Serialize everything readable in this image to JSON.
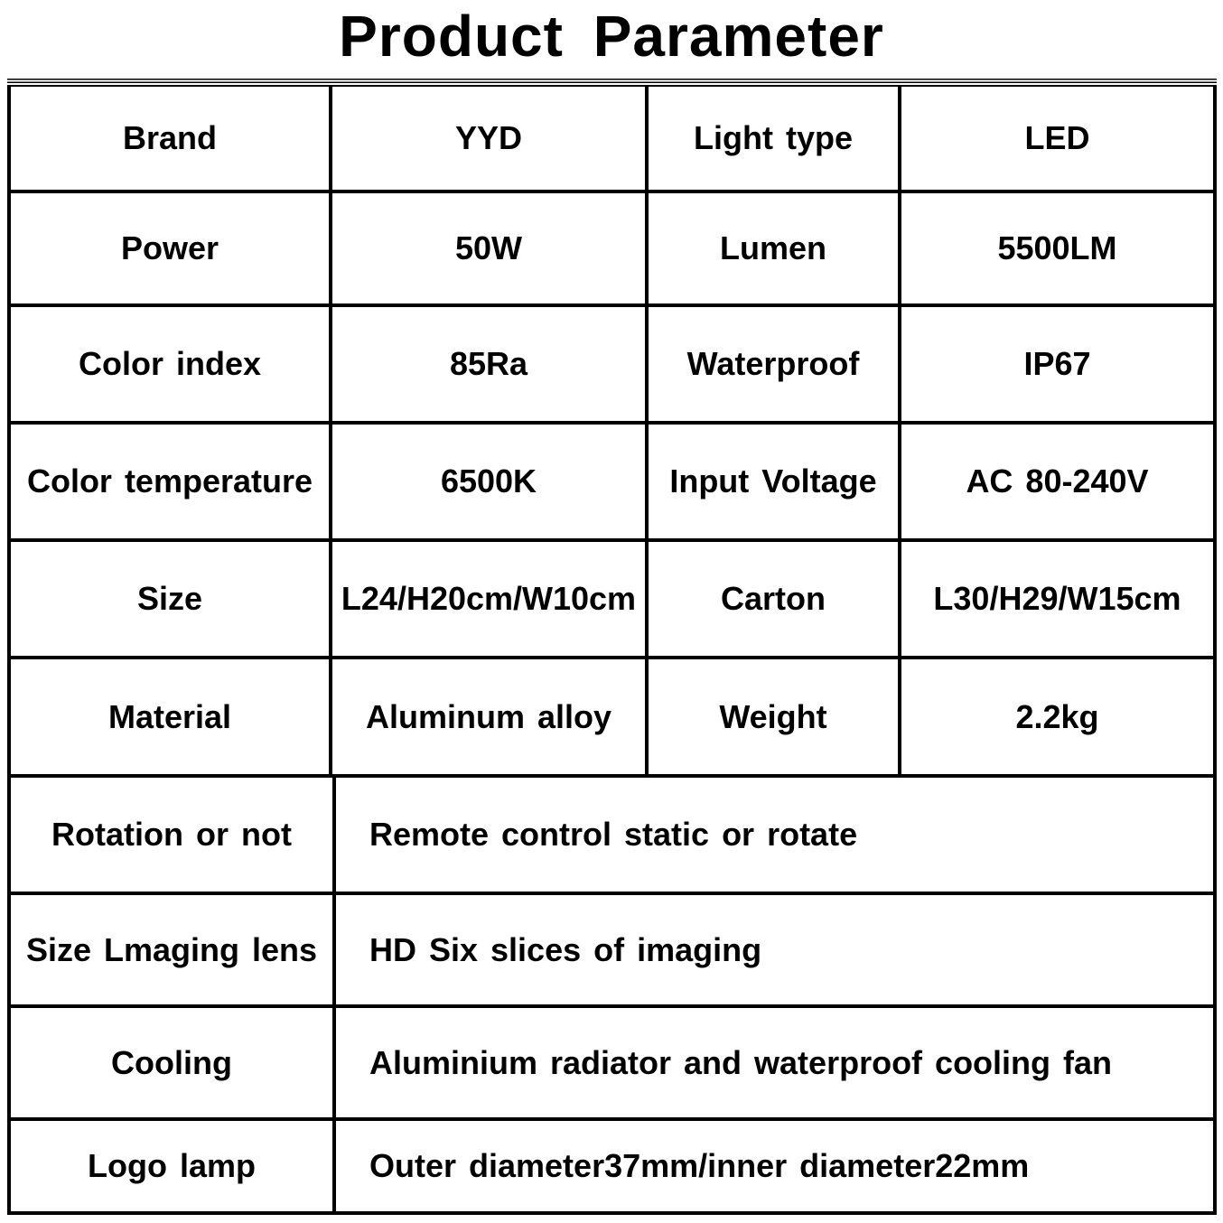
{
  "title": "Product Parameter",
  "table": {
    "four_col_rows": [
      {
        "label1": "Brand",
        "value1": "YYD",
        "label2": "Light type",
        "value2": "LED"
      },
      {
        "label1": "Power",
        "value1": "50W",
        "label2": "Lumen",
        "value2": "5500LM"
      },
      {
        "label1": "Color index",
        "value1": "85Ra",
        "label2": "Waterproof",
        "value2": "IP67"
      },
      {
        "label1": "Color temperature",
        "value1": "6500K",
        "label2": "Input Voltage",
        "value2": "AC 80-240V"
      },
      {
        "label1": "Size",
        "value1": "L24/H20cm/W10cm",
        "label2": "Carton",
        "value2": "L30/H29/W15cm"
      },
      {
        "label1": "Material",
        "value1": "Aluminum alloy",
        "label2": "Weight",
        "value2": "2.2kg"
      }
    ],
    "two_col_rows": [
      {
        "label": "Rotation or not",
        "value": "Remote control static or rotate"
      },
      {
        "label": "Size Lmaging lens",
        "value": "HD Six slices of imaging"
      },
      {
        "label": "Cooling",
        "value": "Aluminium radiator and waterproof cooling fan"
      },
      {
        "label": "Logo lamp",
        "value": "Outer diameter37mm/inner diameter22mm"
      }
    ]
  }
}
